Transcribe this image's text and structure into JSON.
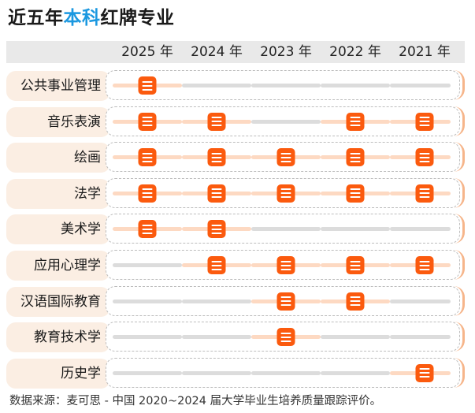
{
  "title": {
    "prefix": "近五年",
    "highlight": "本科",
    "suffix": "红牌专业",
    "highlight_color": "#1b98e0"
  },
  "colors": {
    "marker": "#fb5a0e",
    "active_track": "#fdd9c2",
    "inactive_track": "#dcdcdc",
    "label_bg": "#fbeee3",
    "header_bg": "#e9e9e9"
  },
  "source": "数据来源：麦可思 - 中国 2020~2024 届大学毕业生培养质量跟踪评价。",
  "chart_data": {
    "type": "table",
    "title": "近五年本科红牌专业",
    "columns": [
      "2025 年",
      "2024 年",
      "2023 年",
      "2022 年",
      "2021 年"
    ],
    "rows": [
      {
        "major": "公共事业管理",
        "red_card": [
          true,
          false,
          false,
          false,
          false
        ]
      },
      {
        "major": "音乐表演",
        "red_card": [
          true,
          true,
          false,
          true,
          true
        ]
      },
      {
        "major": "绘画",
        "red_card": [
          true,
          true,
          true,
          true,
          true
        ]
      },
      {
        "major": "法学",
        "red_card": [
          true,
          true,
          true,
          true,
          true
        ]
      },
      {
        "major": "美术学",
        "red_card": [
          true,
          true,
          false,
          false,
          false
        ]
      },
      {
        "major": "应用心理学",
        "red_card": [
          false,
          true,
          true,
          true,
          true
        ]
      },
      {
        "major": "汉语国际教育",
        "red_card": [
          false,
          false,
          true,
          true,
          false
        ]
      },
      {
        "major": "教育技术学",
        "red_card": [
          false,
          false,
          true,
          false,
          false
        ]
      },
      {
        "major": "历史学",
        "red_card": [
          false,
          false,
          false,
          false,
          true
        ]
      }
    ],
    "legend": "orange marker = red-card major in that year",
    "source": "数据来源：麦可思 - 中国 2020~2024 届大学毕业生培养质量跟踪评价。"
  }
}
